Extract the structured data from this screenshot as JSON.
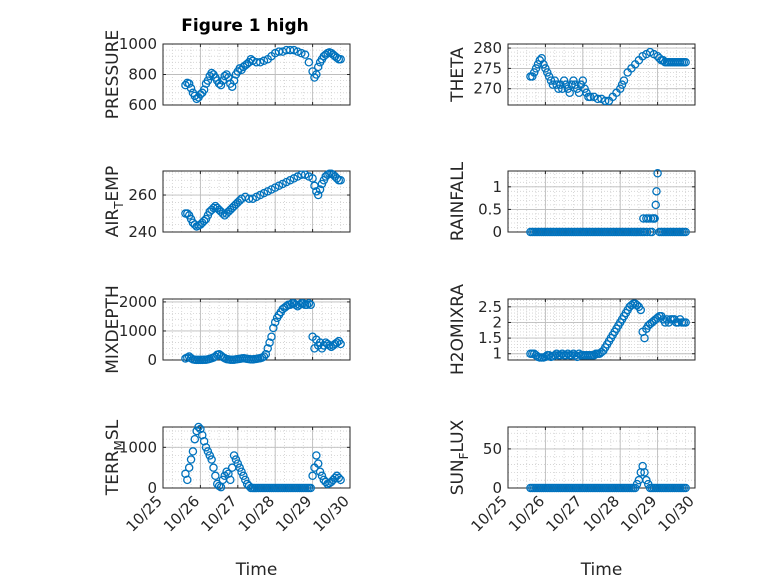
{
  "figure": {
    "title": "Figure 1 high"
  },
  "chart_data": [
    {
      "type": "scatter",
      "col": 0,
      "row": 0,
      "ylabel": "PRESSURE",
      "xlabel": "",
      "xlim": [
        0,
        5
      ],
      "ylim": [
        600,
        1000
      ],
      "yticks": [
        600,
        800,
        1000
      ],
      "ytick_labels": [
        "600",
        "800",
        "1000"
      ],
      "x": [
        0.6,
        0.65,
        0.7,
        0.75,
        0.8,
        0.85,
        0.9,
        0.95,
        1.0,
        1.05,
        1.1,
        1.15,
        1.2,
        1.25,
        1.3,
        1.35,
        1.4,
        1.45,
        1.5,
        1.55,
        1.6,
        1.65,
        1.7,
        1.75,
        1.8,
        1.85,
        1.9,
        1.95,
        2.0,
        2.05,
        2.1,
        2.15,
        2.2,
        2.25,
        2.3,
        2.35,
        2.4,
        2.5,
        2.6,
        2.7,
        2.8,
        2.9,
        3.0,
        3.1,
        3.2,
        3.3,
        3.4,
        3.5,
        3.6,
        3.7,
        3.8,
        3.9,
        4.0,
        4.05,
        4.1,
        4.15,
        4.2,
        4.25,
        4.3,
        4.35,
        4.4,
        4.45,
        4.5,
        4.55,
        4.6,
        4.65,
        4.7,
        4.75
      ],
      "y": [
        730,
        745,
        740,
        710,
        680,
        660,
        640,
        650,
        670,
        680,
        700,
        740,
        760,
        790,
        810,
        800,
        780,
        760,
        740,
        730,
        760,
        790,
        800,
        780,
        740,
        720,
        760,
        800,
        820,
        840,
        830,
        850,
        860,
        870,
        880,
        900,
        890,
        880,
        880,
        890,
        900,
        920,
        940,
        950,
        950,
        960,
        960,
        960,
        950,
        940,
        930,
        880,
        820,
        780,
        800,
        850,
        880,
        900,
        920,
        930,
        940,
        945,
        940,
        930,
        920,
        910,
        900,
        900
      ]
    },
    {
      "type": "scatter",
      "col": 1,
      "row": 0,
      "ylabel": "THETA",
      "xlabel": "",
      "xlim": [
        0,
        5
      ],
      "ylim": [
        266,
        281
      ],
      "yticks": [
        270,
        275,
        280
      ],
      "ytick_labels": [
        "270",
        "275",
        "280"
      ],
      "x": [
        0.6,
        0.65,
        0.7,
        0.75,
        0.8,
        0.85,
        0.9,
        0.95,
        1.0,
        1.05,
        1.1,
        1.15,
        1.2,
        1.25,
        1.3,
        1.35,
        1.4,
        1.45,
        1.5,
        1.55,
        1.6,
        1.65,
        1.7,
        1.75,
        1.8,
        1.85,
        1.9,
        1.95,
        2.0,
        2.05,
        2.1,
        2.15,
        2.2,
        2.3,
        2.4,
        2.5,
        2.6,
        2.7,
        2.8,
        2.9,
        3.0,
        3.05,
        3.1,
        3.2,
        3.3,
        3.4,
        3.5,
        3.6,
        3.7,
        3.8,
        3.9,
        4.0,
        4.05,
        4.1,
        4.15,
        4.2,
        4.25,
        4.3,
        4.35,
        4.4,
        4.45,
        4.5,
        4.55,
        4.6,
        4.65,
        4.7,
        4.75
      ],
      "y": [
        273,
        273,
        274,
        275,
        276,
        277,
        277.5,
        276,
        275,
        274,
        273,
        272,
        271,
        272,
        271,
        270,
        271,
        270,
        272,
        271,
        270,
        269,
        271,
        272,
        271,
        270,
        269,
        271,
        272,
        270,
        269,
        268,
        268,
        268,
        267.5,
        267.5,
        267,
        267,
        268,
        269,
        270,
        271,
        272,
        274,
        275,
        276,
        277,
        278,
        278.5,
        279,
        278.5,
        278,
        277.5,
        277,
        277,
        276.5,
        276.5,
        276.5,
        276.5,
        276.5,
        276.5,
        276.5,
        276.5,
        276.5,
        276.5,
        276.5,
        276.5
      ]
    },
    {
      "type": "scatter",
      "col": 0,
      "row": 1,
      "ylabel": "AIR_TEMP",
      "xlabel": "",
      "xlim": [
        0,
        5
      ],
      "ylim": [
        240,
        273
      ],
      "yticks": [
        240,
        260
      ],
      "ytick_labels": [
        "240",
        "260"
      ],
      "x": [
        0.6,
        0.65,
        0.7,
        0.75,
        0.8,
        0.85,
        0.9,
        0.95,
        1.0,
        1.05,
        1.1,
        1.15,
        1.2,
        1.25,
        1.3,
        1.35,
        1.4,
        1.45,
        1.5,
        1.55,
        1.6,
        1.65,
        1.7,
        1.75,
        1.8,
        1.85,
        1.9,
        1.95,
        2.0,
        2.05,
        2.1,
        2.2,
        2.3,
        2.4,
        2.5,
        2.6,
        2.7,
        2.8,
        2.9,
        3.0,
        3.1,
        3.2,
        3.3,
        3.4,
        3.5,
        3.6,
        3.7,
        3.8,
        3.9,
        4.0,
        4.05,
        4.1,
        4.15,
        4.2,
        4.25,
        4.3,
        4.35,
        4.4,
        4.45,
        4.5,
        4.55,
        4.6,
        4.65,
        4.7,
        4.75
      ],
      "y": [
        250,
        250,
        249,
        247,
        245,
        244,
        243,
        243.5,
        244,
        245,
        246,
        247,
        249,
        251,
        252,
        253,
        254,
        253,
        252,
        251,
        250,
        249,
        250,
        251,
        252,
        253,
        254,
        255,
        256,
        257,
        258,
        259,
        258,
        258,
        259,
        260,
        261,
        262,
        263,
        264,
        265,
        266,
        267,
        268,
        269,
        270,
        271,
        271,
        270,
        269,
        265,
        262,
        260,
        263,
        266,
        268,
        270,
        271,
        271.5,
        271.5,
        271,
        270,
        269,
        268,
        268
      ]
    },
    {
      "type": "scatter",
      "col": 1,
      "row": 1,
      "ylabel": "RAINFALL",
      "xlabel": "",
      "xlim": [
        0,
        5
      ],
      "ylim": [
        0,
        1.35
      ],
      "yticks": [
        0,
        0.5,
        1
      ],
      "ytick_labels": [
        "0",
        "0.5",
        "1"
      ],
      "x": [
        0.6,
        0.65,
        0.7,
        0.75,
        0.8,
        0.85,
        0.9,
        0.95,
        1.0,
        1.05,
        1.1,
        1.15,
        1.2,
        1.25,
        1.3,
        1.35,
        1.4,
        1.45,
        1.5,
        1.55,
        1.6,
        1.65,
        1.7,
        1.75,
        1.8,
        1.85,
        1.9,
        1.95,
        2.0,
        2.05,
        2.1,
        2.15,
        2.2,
        2.25,
        2.3,
        2.35,
        2.4,
        2.45,
        2.5,
        2.55,
        2.6,
        2.65,
        2.7,
        2.75,
        2.8,
        2.85,
        2.9,
        2.95,
        3.0,
        3.05,
        3.1,
        3.15,
        3.2,
        3.25,
        3.3,
        3.35,
        3.4,
        3.45,
        3.5,
        3.55,
        3.6,
        3.62,
        3.65,
        3.7,
        3.72,
        3.75,
        3.8,
        3.82,
        3.85,
        3.88,
        3.9,
        3.92,
        3.95,
        3.97,
        4.0,
        4.05,
        4.1,
        4.15,
        4.2,
        4.25,
        4.3,
        4.35,
        4.4,
        4.45,
        4.5,
        4.55,
        4.6,
        4.65,
        4.7,
        4.75
      ],
      "y": [
        0,
        0,
        0,
        0,
        0,
        0,
        0,
        0,
        0,
        0,
        0,
        0,
        0,
        0,
        0,
        0,
        0,
        0,
        0,
        0,
        0,
        0,
        0,
        0,
        0,
        0,
        0,
        0,
        0,
        0,
        0,
        0,
        0,
        0,
        0,
        0,
        0,
        0,
        0,
        0,
        0,
        0,
        0,
        0,
        0,
        0,
        0,
        0,
        0,
        0,
        0,
        0,
        0,
        0,
        0,
        0,
        0,
        0,
        0,
        0,
        0,
        0.3,
        0,
        0.3,
        0,
        0.3,
        0,
        0.3,
        0,
        0.3,
        0.3,
        0.3,
        0.6,
        0.9,
        1.3,
        0,
        0,
        0,
        0,
        0,
        0,
        0,
        0,
        0,
        0,
        0,
        0,
        0,
        0,
        0
      ]
    },
    {
      "type": "scatter",
      "col": 0,
      "row": 2,
      "ylabel": "MIXDEPTH",
      "xlabel": "",
      "xlim": [
        0,
        5
      ],
      "ylim": [
        0,
        2100
      ],
      "yticks": [
        0,
        1000,
        2000
      ],
      "ytick_labels": [
        "0",
        "1000",
        "2000"
      ],
      "x": [
        0.6,
        0.65,
        0.7,
        0.75,
        0.8,
        0.85,
        0.9,
        0.95,
        1.0,
        1.05,
        1.1,
        1.15,
        1.2,
        1.25,
        1.3,
        1.35,
        1.4,
        1.45,
        1.5,
        1.55,
        1.6,
        1.65,
        1.7,
        1.75,
        1.8,
        1.85,
        1.9,
        1.95,
        2.0,
        2.05,
        2.1,
        2.15,
        2.2,
        2.25,
        2.3,
        2.35,
        2.4,
        2.45,
        2.5,
        2.55,
        2.6,
        2.65,
        2.7,
        2.75,
        2.8,
        2.85,
        2.9,
        2.95,
        3.0,
        3.05,
        3.1,
        3.15,
        3.2,
        3.25,
        3.3,
        3.35,
        3.4,
        3.45,
        3.5,
        3.55,
        3.6,
        3.65,
        3.7,
        3.75,
        3.8,
        3.85,
        3.9,
        3.95,
        4.0,
        4.05,
        4.1,
        4.15,
        4.2,
        4.25,
        4.3,
        4.35,
        4.4,
        4.45,
        4.5,
        4.55,
        4.6,
        4.65,
        4.7,
        4.75
      ],
      "y": [
        50,
        80,
        120,
        60,
        20,
        10,
        5,
        5,
        5,
        5,
        10,
        10,
        20,
        40,
        60,
        80,
        120,
        180,
        200,
        150,
        100,
        60,
        30,
        20,
        10,
        10,
        10,
        20,
        30,
        40,
        50,
        60,
        50,
        40,
        30,
        20,
        20,
        30,
        40,
        50,
        60,
        80,
        120,
        200,
        400,
        600,
        800,
        1100,
        1300,
        1450,
        1550,
        1650,
        1750,
        1800,
        1850,
        1900,
        1900,
        1950,
        1950,
        1900,
        1850,
        1900,
        1950,
        1950,
        1900,
        1900,
        1950,
        1900,
        800,
        400,
        700,
        500,
        600,
        400,
        500,
        600,
        550,
        500,
        450,
        500,
        550,
        600,
        650,
        550
      ]
    },
    {
      "type": "scatter",
      "col": 1,
      "row": 2,
      "ylabel": "H2OMIXRA",
      "xlabel": "",
      "xlim": [
        0,
        5
      ],
      "ylim": [
        0.8,
        2.75
      ],
      "yticks": [
        1,
        1.5,
        2,
        2.5
      ],
      "ytick_labels": [
        "1",
        "1.5",
        "2",
        "2.5"
      ],
      "x": [
        0.6,
        0.65,
        0.7,
        0.75,
        0.8,
        0.85,
        0.9,
        0.95,
        1.0,
        1.05,
        1.1,
        1.15,
        1.2,
        1.25,
        1.3,
        1.35,
        1.4,
        1.45,
        1.5,
        1.55,
        1.6,
        1.65,
        1.7,
        1.75,
        1.8,
        1.85,
        1.9,
        1.95,
        2.0,
        2.05,
        2.1,
        2.15,
        2.2,
        2.25,
        2.3,
        2.35,
        2.4,
        2.45,
        2.5,
        2.55,
        2.6,
        2.65,
        2.7,
        2.75,
        2.8,
        2.85,
        2.9,
        2.95,
        3.0,
        3.05,
        3.1,
        3.15,
        3.2,
        3.25,
        3.3,
        3.35,
        3.4,
        3.45,
        3.5,
        3.55,
        3.6,
        3.65,
        3.7,
        3.75,
        3.8,
        3.85,
        3.9,
        3.95,
        4.0,
        4.05,
        4.1,
        4.15,
        4.2,
        4.25,
        4.3,
        4.35,
        4.4,
        4.45,
        4.5,
        4.55,
        4.6,
        4.65,
        4.7,
        4.75
      ],
      "y": [
        1.0,
        1.0,
        1.0,
        0.95,
        0.9,
        0.88,
        0.88,
        0.88,
        0.9,
        0.95,
        0.95,
        0.9,
        0.92,
        0.95,
        1.0,
        0.95,
        0.95,
        1.0,
        0.95,
        0.95,
        1.0,
        0.95,
        0.95,
        1.0,
        0.95,
        0.9,
        1.0,
        0.95,
        0.95,
        0.95,
        0.95,
        0.95,
        0.95,
        0.95,
        0.95,
        1.0,
        1.0,
        1.0,
        1.05,
        1.1,
        1.2,
        1.3,
        1.4,
        1.5,
        1.6,
        1.7,
        1.8,
        1.9,
        2.0,
        2.1,
        2.2,
        2.3,
        2.4,
        2.5,
        2.55,
        2.6,
        2.6,
        2.55,
        2.5,
        2.4,
        1.7,
        1.5,
        1.8,
        1.9,
        1.95,
        2.0,
        2.05,
        2.1,
        2.15,
        2.2,
        2.2,
        2.1,
        2.0,
        2.1,
        2.0,
        2.1,
        2.1,
        2.1,
        2.0,
        2.0,
        2.1,
        2.0,
        2.0,
        2.0
      ]
    },
    {
      "type": "scatter",
      "col": 0,
      "row": 3,
      "ylabel": "TERR_MSL",
      "xlabel": "Time",
      "xlim": [
        0,
        5
      ],
      "ylim": [
        0,
        1500
      ],
      "yticks": [
        0,
        1000
      ],
      "ytick_labels": [
        "0",
        "1000"
      ],
      "xticks": [
        0,
        1,
        2,
        3,
        4,
        5
      ],
      "xtick_labels": [
        "10/25",
        "10/26",
        "10/27",
        "10/28",
        "10/29",
        "10/30"
      ],
      "x": [
        0.6,
        0.65,
        0.7,
        0.75,
        0.8,
        0.85,
        0.9,
        0.95,
        1.0,
        1.05,
        1.1,
        1.15,
        1.2,
        1.25,
        1.3,
        1.35,
        1.4,
        1.45,
        1.5,
        1.55,
        1.6,
        1.65,
        1.7,
        1.75,
        1.8,
        1.85,
        1.9,
        1.95,
        2.0,
        2.05,
        2.1,
        2.15,
        2.2,
        2.25,
        2.3,
        2.35,
        2.4,
        2.45,
        2.5,
        2.55,
        2.6,
        2.65,
        2.7,
        2.75,
        2.8,
        2.85,
        2.9,
        2.95,
        3.0,
        3.05,
        3.1,
        3.15,
        3.2,
        3.25,
        3.3,
        3.35,
        3.4,
        3.45,
        3.5,
        3.55,
        3.6,
        3.65,
        3.7,
        3.75,
        3.8,
        3.85,
        3.9,
        3.95,
        4.0,
        4.05,
        4.1,
        4.15,
        4.2,
        4.25,
        4.3,
        4.35,
        4.4,
        4.45,
        4.5,
        4.55,
        4.6,
        4.65,
        4.7,
        4.75
      ],
      "y": [
        350,
        200,
        500,
        700,
        900,
        1200,
        1400,
        1500,
        1450,
        1300,
        1150,
        1000,
        900,
        800,
        700,
        500,
        300,
        100,
        50,
        20,
        200,
        300,
        400,
        350,
        200,
        500,
        800,
        700,
        600,
        500,
        400,
        300,
        200,
        100,
        50,
        0,
        0,
        0,
        0,
        0,
        0,
        0,
        0,
        0,
        0,
        0,
        0,
        0,
        0,
        0,
        0,
        0,
        0,
        0,
        0,
        0,
        0,
        0,
        0,
        0,
        0,
        0,
        0,
        0,
        0,
        0,
        0,
        0,
        300,
        500,
        800,
        600,
        400,
        300,
        200,
        150,
        100,
        120,
        150,
        200,
        250,
        300,
        250,
        200
      ]
    },
    {
      "type": "scatter",
      "col": 1,
      "row": 3,
      "ylabel": "SUN_FLUX",
      "xlabel": "Time",
      "xlim": [
        0,
        5
      ],
      "ylim": [
        0,
        78
      ],
      "yticks": [
        0,
        50
      ],
      "ytick_labels": [
        "0",
        "50"
      ],
      "xticks": [
        0,
        1,
        2,
        3,
        4,
        5
      ],
      "xtick_labels": [
        "10/25",
        "10/26",
        "10/27",
        "10/28",
        "10/29",
        "10/30"
      ],
      "x": [
        0.6,
        0.65,
        0.7,
        0.75,
        0.8,
        0.85,
        0.9,
        0.95,
        1.0,
        1.05,
        1.1,
        1.15,
        1.2,
        1.25,
        1.3,
        1.35,
        1.4,
        1.45,
        1.5,
        1.55,
        1.6,
        1.65,
        1.7,
        1.75,
        1.8,
        1.85,
        1.9,
        1.95,
        2.0,
        2.05,
        2.1,
        2.15,
        2.2,
        2.25,
        2.3,
        2.35,
        2.4,
        2.45,
        2.5,
        2.55,
        2.6,
        2.65,
        2.7,
        2.75,
        2.8,
        2.85,
        2.9,
        2.95,
        3.0,
        3.05,
        3.1,
        3.15,
        3.2,
        3.25,
        3.3,
        3.35,
        3.4,
        3.45,
        3.5,
        3.55,
        3.6,
        3.65,
        3.7,
        3.75,
        3.8,
        3.85,
        3.9,
        3.95,
        4.0,
        4.05,
        4.1,
        4.15,
        4.2,
        4.25,
        4.3,
        4.35,
        4.4,
        4.45,
        4.5,
        4.55,
        4.6,
        4.65,
        4.7,
        4.75
      ],
      "y": [
        0,
        0,
        0,
        0,
        0,
        0,
        0,
        0,
        0,
        0,
        0,
        0,
        0,
        0,
        0,
        0,
        0,
        0,
        0,
        0,
        0,
        0,
        0,
        0,
        0,
        0,
        0,
        0,
        0,
        0,
        0,
        0,
        0,
        0,
        0,
        0,
        0,
        0,
        0,
        0,
        0,
        0,
        0,
        0,
        0,
        0,
        0,
        0,
        0,
        0,
        0,
        0,
        0,
        0,
        0,
        0,
        0,
        5,
        10,
        20,
        28,
        20,
        10,
        5,
        0,
        0,
        0,
        0,
        0,
        0,
        0,
        0,
        0,
        0,
        0,
        0,
        0,
        0,
        0,
        0,
        0,
        0,
        0,
        0
      ]
    }
  ]
}
